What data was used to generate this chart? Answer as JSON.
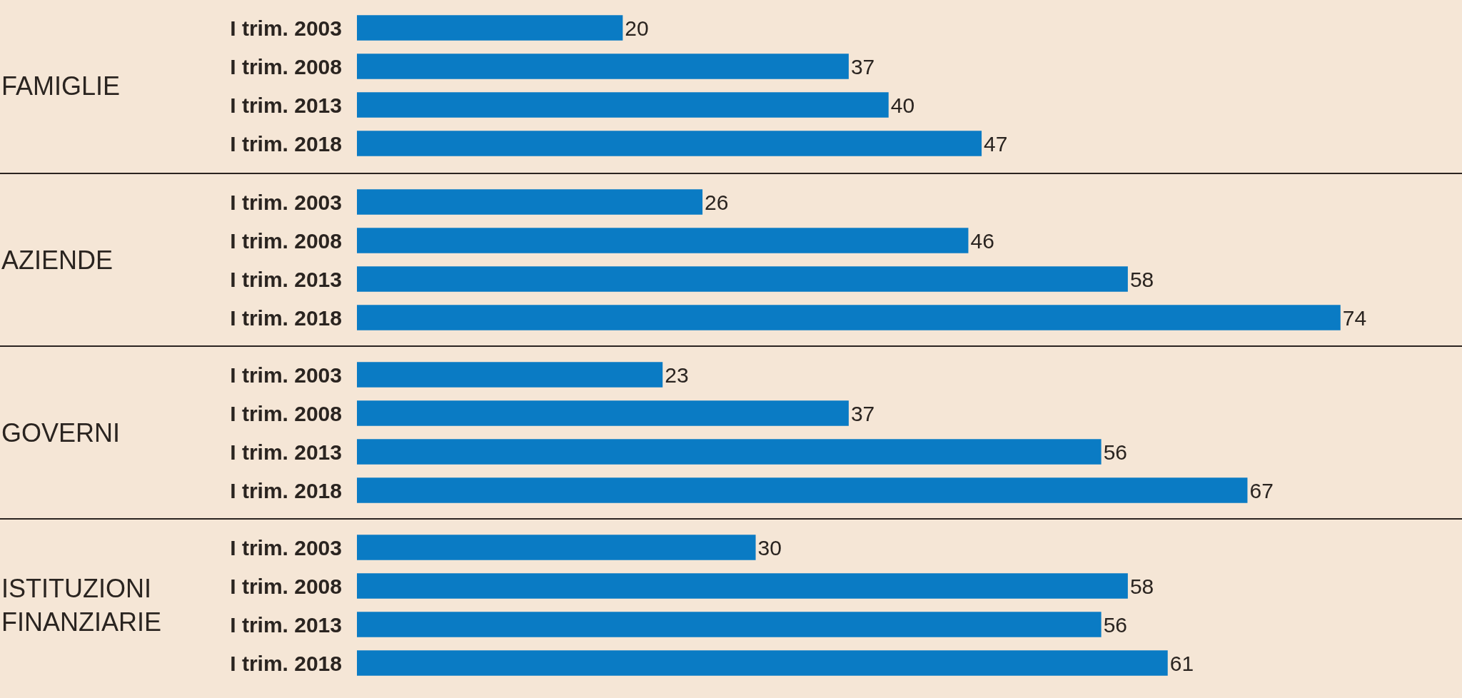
{
  "chart_data": [
    {
      "type": "bar",
      "orientation": "horizontal",
      "title": "FAMIGLIE",
      "categories": [
        "I trim. 2003",
        "I trim. 2008",
        "I trim. 2013",
        "I trim. 2018"
      ],
      "values": [
        20,
        37,
        40,
        47
      ],
      "color": "#0a7bc4",
      "data_labels": true
    },
    {
      "type": "bar",
      "orientation": "horizontal",
      "title": "AZIENDE",
      "categories": [
        "I trim. 2003",
        "I trim. 2008",
        "I trim. 2013",
        "I trim. 2018"
      ],
      "values": [
        26,
        46,
        58,
        74
      ],
      "color": "#0a7bc4",
      "data_labels": true
    },
    {
      "type": "bar",
      "orientation": "horizontal",
      "title": "GOVERNI",
      "categories": [
        "I trim. 2003",
        "I trim. 2008",
        "I trim. 2013",
        "I trim. 2018"
      ],
      "values": [
        23,
        37,
        56,
        67
      ],
      "color": "#0a7bc4",
      "data_labels": true
    },
    {
      "type": "bar",
      "orientation": "horizontal",
      "title": "ISTITUZIONI\nFINANZIARIE",
      "categories": [
        "I trim. 2003",
        "I trim. 2008",
        "I trim. 2013",
        "I trim. 2018"
      ],
      "values": [
        30,
        58,
        56,
        61
      ],
      "color": "#0a7bc4",
      "data_labels": true
    }
  ]
}
